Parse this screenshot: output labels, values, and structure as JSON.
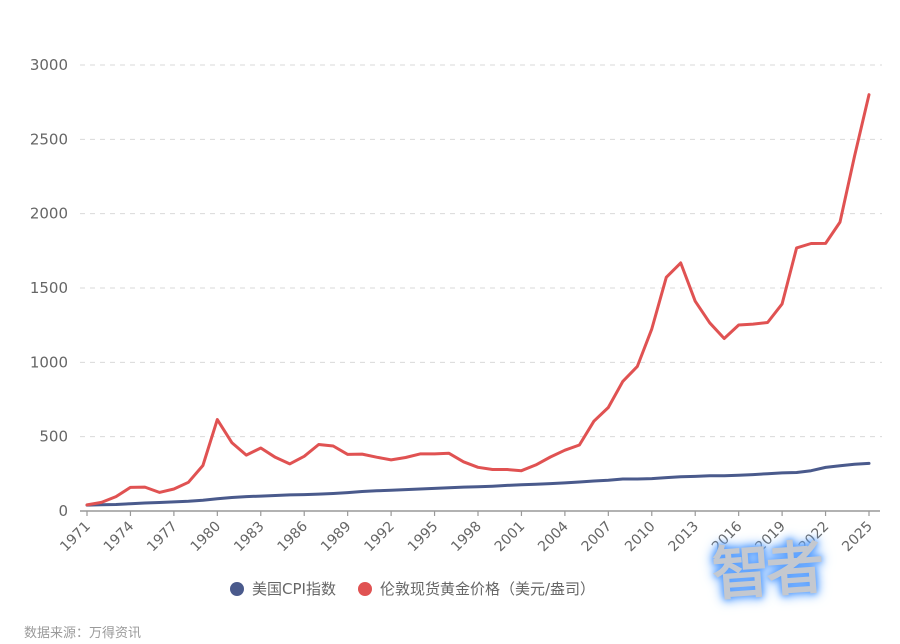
{
  "chart_data": {
    "type": "line",
    "title": "",
    "xlabel": "",
    "ylabel": "",
    "ylim": [
      0,
      3000
    ],
    "yticks": [
      0,
      500,
      1000,
      1500,
      2000,
      2500,
      3000
    ],
    "grid": true,
    "legend_position": "bottom",
    "x_tick_labels": [
      "1971",
      "1974",
      "1977",
      "1980",
      "1983",
      "1986",
      "1989",
      "1992",
      "1995",
      "1998",
      "2001",
      "2004",
      "2007",
      "2010",
      "2013",
      "2016",
      "2019",
      "2022",
      "2025"
    ],
    "x": [
      1971,
      1972,
      1973,
      1974,
      1975,
      1976,
      1977,
      1978,
      1979,
      1980,
      1981,
      1982,
      1983,
      1984,
      1985,
      1986,
      1987,
      1988,
      1989,
      1990,
      1991,
      1992,
      1993,
      1994,
      1995,
      1996,
      1997,
      1998,
      1999,
      2000,
      2001,
      2002,
      2003,
      2004,
      2005,
      2006,
      2007,
      2008,
      2009,
      2010,
      2011,
      2012,
      2013,
      2014,
      2015,
      2016,
      2017,
      2018,
      2019,
      2020,
      2021,
      2022,
      2023,
      2024,
      2025
    ],
    "series": [
      {
        "name": "美国CPI指数",
        "color": "#4a5a8c",
        "values": [
          40,
          42,
          44,
          49,
          54,
          57,
          61,
          65,
          72,
          82,
          91,
          97,
          100,
          104,
          108,
          110,
          114,
          118,
          124,
          131,
          136,
          140,
          144,
          148,
          152,
          157,
          161,
          163,
          167,
          172,
          177,
          180,
          184,
          189,
          195,
          202,
          207,
          215,
          215,
          218,
          225,
          230,
          233,
          237,
          237,
          240,
          245,
          251,
          256,
          259,
          271,
          293,
          305,
          314,
          320
        ]
      },
      {
        "name": "伦敦现货黄金价格（美元/盎司）",
        "color": "#e05252",
        "values": [
          41,
          58,
          97,
          159,
          161,
          125,
          148,
          193,
          306,
          615,
          460,
          376,
          424,
          361,
          317,
          368,
          447,
          437,
          381,
          383,
          362,
          344,
          360,
          384,
          384,
          388,
          331,
          294,
          279,
          279,
          271,
          310,
          363,
          409,
          444,
          604,
          696,
          872,
          972,
          1225,
          1572,
          1669,
          1411,
          1266,
          1160,
          1251,
          1257,
          1268,
          1393,
          1770,
          1799,
          1800,
          1943,
          2386,
          2800
        ]
      }
    ]
  },
  "legend": {
    "items": [
      {
        "label": "美国CPI指数",
        "color": "#4a5a8c"
      },
      {
        "label": "伦敦现货黄金价格（美元/盎司）",
        "color": "#e05252"
      }
    ]
  },
  "source_note": "数据来源：万得资讯",
  "watermark": "智者"
}
